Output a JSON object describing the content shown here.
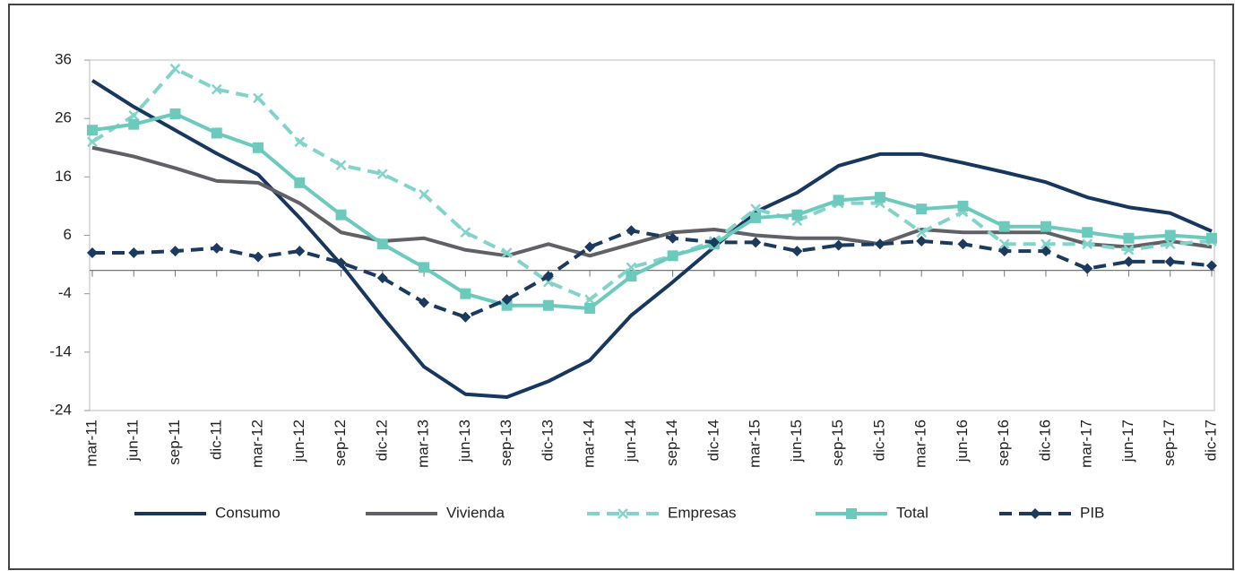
{
  "chart_data": {
    "type": "line",
    "categories": [
      "mar-11",
      "jun-11",
      "sep-11",
      "dic-11",
      "mar-12",
      "jun-12",
      "sep-12",
      "dic-12",
      "mar-13",
      "jun-13",
      "sep-13",
      "dic-13",
      "mar-14",
      "jun-14",
      "sep-14",
      "dic-14",
      "mar-15",
      "jun-15",
      "sep-15",
      "dic-15",
      "mar-16",
      "jun-16",
      "sep-16",
      "dic-16",
      "mar-17",
      "jun-17",
      "sep-17",
      "dic-17"
    ],
    "ylim": [
      -24,
      36
    ],
    "yticks": [
      36,
      26,
      16,
      6,
      -4,
      -14,
      -24
    ],
    "legend": "bottom",
    "series": [
      {
        "name": "Consumo",
        "color": "#17375e",
        "line_style": "solid",
        "marker": "none",
        "values": [
          32.5,
          28,
          24,
          20,
          16.4,
          9,
          1,
          -8,
          -16.5,
          -21.2,
          -21.7,
          -19,
          -15.4,
          -7.7,
          -2,
          4,
          10,
          13.3,
          17.9,
          19.9,
          19.9,
          18.4,
          16.8,
          15.1,
          12.5,
          10.8,
          9.8,
          6.7
        ]
      },
      {
        "name": "Vivienda",
        "color": "#5f6167",
        "line_style": "solid",
        "marker": "none",
        "values": [
          21,
          19.5,
          17.5,
          15.3,
          15,
          11.5,
          6.5,
          5,
          5.5,
          3.5,
          2.5,
          4.5,
          2.5,
          4.5,
          6.5,
          7,
          6,
          5.5,
          5.5,
          4.5,
          7,
          6.5,
          6.5,
          6.5,
          4.5,
          4,
          5,
          4
        ]
      },
      {
        "name": "Empresas",
        "color": "#82d3c9",
        "line_style": "dashed",
        "marker": "x",
        "values": [
          22,
          26.5,
          34.5,
          31,
          29.5,
          22,
          18,
          16.5,
          13,
          6.5,
          3,
          -2,
          -5,
          0.5,
          2.5,
          5,
          10.5,
          8.5,
          11.5,
          11.5,
          6.5,
          10,
          4.5,
          4.5,
          4.5,
          3.5,
          4.5,
          5
        ]
      },
      {
        "name": "Total",
        "color": "#6ccabd",
        "line_style": "solid",
        "marker": "square",
        "values": [
          24,
          25,
          26.8,
          23.5,
          21,
          15,
          9.5,
          4.5,
          0.5,
          -4,
          -6,
          -6,
          -6.5,
          -1,
          2.5,
          4.5,
          9,
          9.5,
          12,
          12.5,
          10.5,
          11,
          7.5,
          7.5,
          6.5,
          5.5,
          6,
          5.5
        ]
      },
      {
        "name": "PIB",
        "color": "#1b3a5e",
        "line_style": "dashed",
        "marker": "diamond",
        "values": [
          3,
          3,
          3.3,
          3.8,
          2.3,
          3.3,
          1.3,
          -1.3,
          -5.5,
          -8,
          -5,
          -1,
          4,
          6.8,
          5.5,
          4.8,
          4.8,
          3.3,
          4.3,
          4.5,
          5,
          4.5,
          3.3,
          3.3,
          0.3,
          1.5,
          1.5,
          0.8
        ]
      }
    ]
  }
}
